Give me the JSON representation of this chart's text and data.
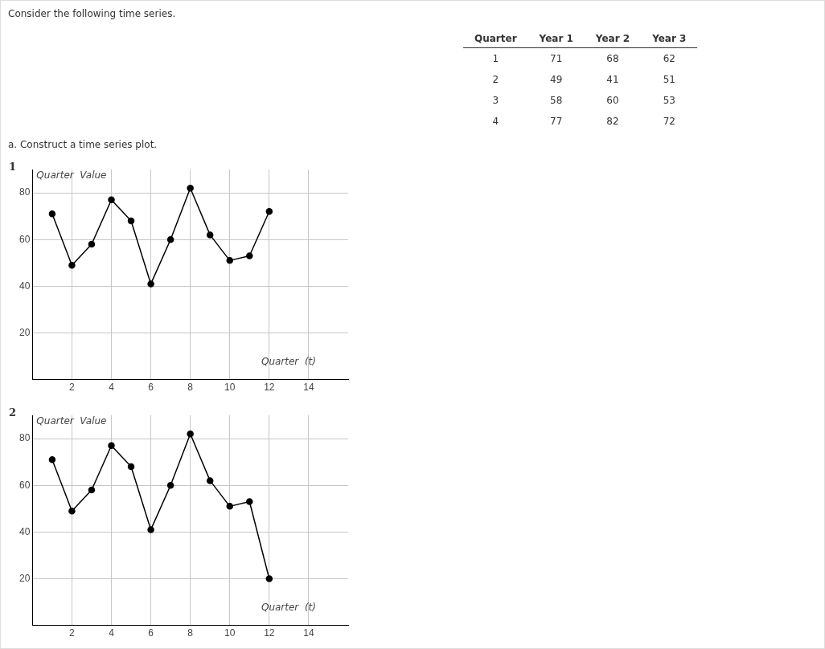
{
  "chart_data": [
    {
      "type": "heatmap",
      "ylabel": "Quarter",
      "categories": [
        "Year 1",
        "Year 2",
        "Year 3"
      ],
      "y_categories": [
        "1",
        "2",
        "3",
        "4"
      ],
      "cells": [
        [
          71,
          68,
          62
        ],
        [
          49,
          41,
          51
        ],
        [
          58,
          60,
          53
        ],
        [
          77,
          82,
          72
        ]
      ],
      "data_labels": true,
      "annotations": [
        "Consider the following time series.",
        "a. Construct a time series plot."
      ]
    },
    {
      "type": "line",
      "title": "1",
      "xlabel": "Quarter  (t)",
      "ylabel": "Quarter  Value",
      "x": [
        1,
        2,
        3,
        4,
        5,
        6,
        7,
        8,
        9,
        10,
        11,
        12
      ],
      "series": [
        {
          "color": "#000000",
          "values": [
            71,
            49,
            58,
            77,
            68,
            41,
            60,
            82,
            62,
            51,
            53,
            72
          ]
        }
      ],
      "xlim": [
        0,
        16
      ],
      "xticks": [
        2,
        4,
        6,
        8,
        10,
        12,
        14
      ],
      "ylim": [
        0,
        90
      ],
      "yticks": [
        20,
        40,
        60,
        80
      ],
      "grid": true,
      "legend": false,
      "marker": "circle",
      "line_style": "solid"
    },
    {
      "type": "line",
      "title": "2",
      "xlabel": "Quarter  (t)",
      "ylabel": "Quarter  Value",
      "x": [
        1,
        2,
        3,
        4,
        5,
        6,
        7,
        8,
        9,
        10,
        11,
        12
      ],
      "series": [
        {
          "color": "#000000",
          "values": [
            71,
            49,
            58,
            77,
            68,
            41,
            60,
            82,
            62,
            51,
            53,
            20
          ]
        }
      ],
      "xlim": [
        0,
        16
      ],
      "xticks": [
        2,
        4,
        6,
        8,
        10,
        12,
        14
      ],
      "ylim": [
        0,
        90
      ],
      "yticks": [
        20,
        40,
        60,
        80
      ],
      "grid": true,
      "legend": false,
      "marker": "circle",
      "line_style": "solid"
    }
  ]
}
